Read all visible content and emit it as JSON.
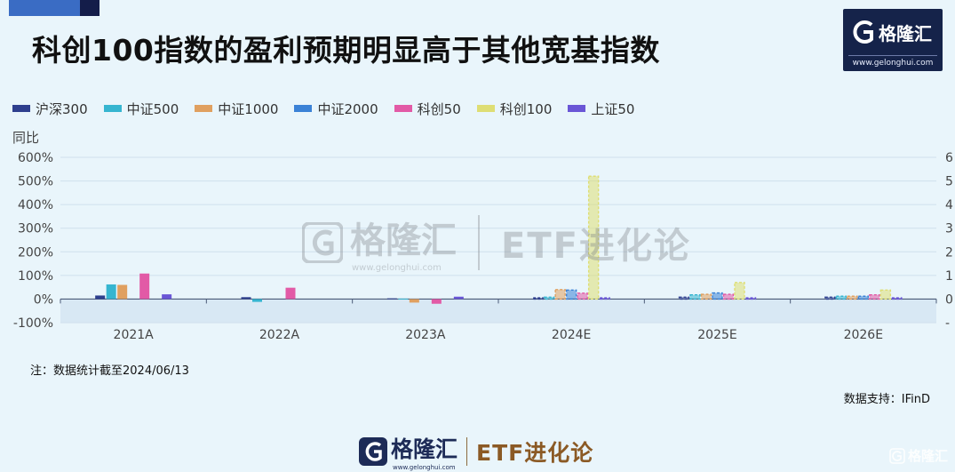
{
  "title": "科创100指数的盈利预期明显高于其他宽基指数",
  "brand": {
    "name": "格隆汇",
    "url": "www.gelonghui.com",
    "product": "ETF进化论"
  },
  "note": "注：数据统计截至2024/06/13",
  "source": "数据支持：IFinD",
  "chart_data": {
    "type": "bar",
    "ylabel": "同比",
    "ylim": [
      -100,
      600
    ],
    "yticks": [
      "600%",
      "500%",
      "400%",
      "300%",
      "200%",
      "100%",
      "0%",
      "-100%"
    ],
    "yticks_right": [
      "6",
      "5",
      "4",
      "3",
      "2",
      "1",
      "0",
      "-"
    ],
    "categories": [
      "2021A",
      "2022A",
      "2023A",
      "2024E",
      "2025E",
      "2026E"
    ],
    "series": [
      {
        "name": "沪深300",
        "color": "#2e3f8e",
        "values": [
          15,
          8,
          3,
          5,
          8,
          8
        ]
      },
      {
        "name": "中证500",
        "color": "#36b5d0",
        "values": [
          62,
          -12,
          2,
          8,
          18,
          12
        ]
      },
      {
        "name": "中证1000",
        "color": "#e0a060",
        "values": [
          60,
          0,
          -15,
          40,
          20,
          12
        ]
      },
      {
        "name": "中证2000",
        "color": "#3b82d6",
        "values": [
          0,
          0,
          0,
          38,
          26,
          12
        ]
      },
      {
        "name": "科创50",
        "color": "#e25aa6",
        "values": [
          108,
          48,
          -20,
          25,
          20,
          18
        ]
      },
      {
        "name": "科创100",
        "color": "#dede74",
        "values": [
          0,
          0,
          0,
          520,
          70,
          38
        ]
      },
      {
        "name": "上证50",
        "color": "#6a56d6",
        "values": [
          20,
          0,
          10,
          5,
          5,
          5
        ]
      }
    ],
    "estimated_categories": [
      "2024E",
      "2025E",
      "2026E"
    ],
    "grid": true,
    "legend_position": "top-left"
  }
}
